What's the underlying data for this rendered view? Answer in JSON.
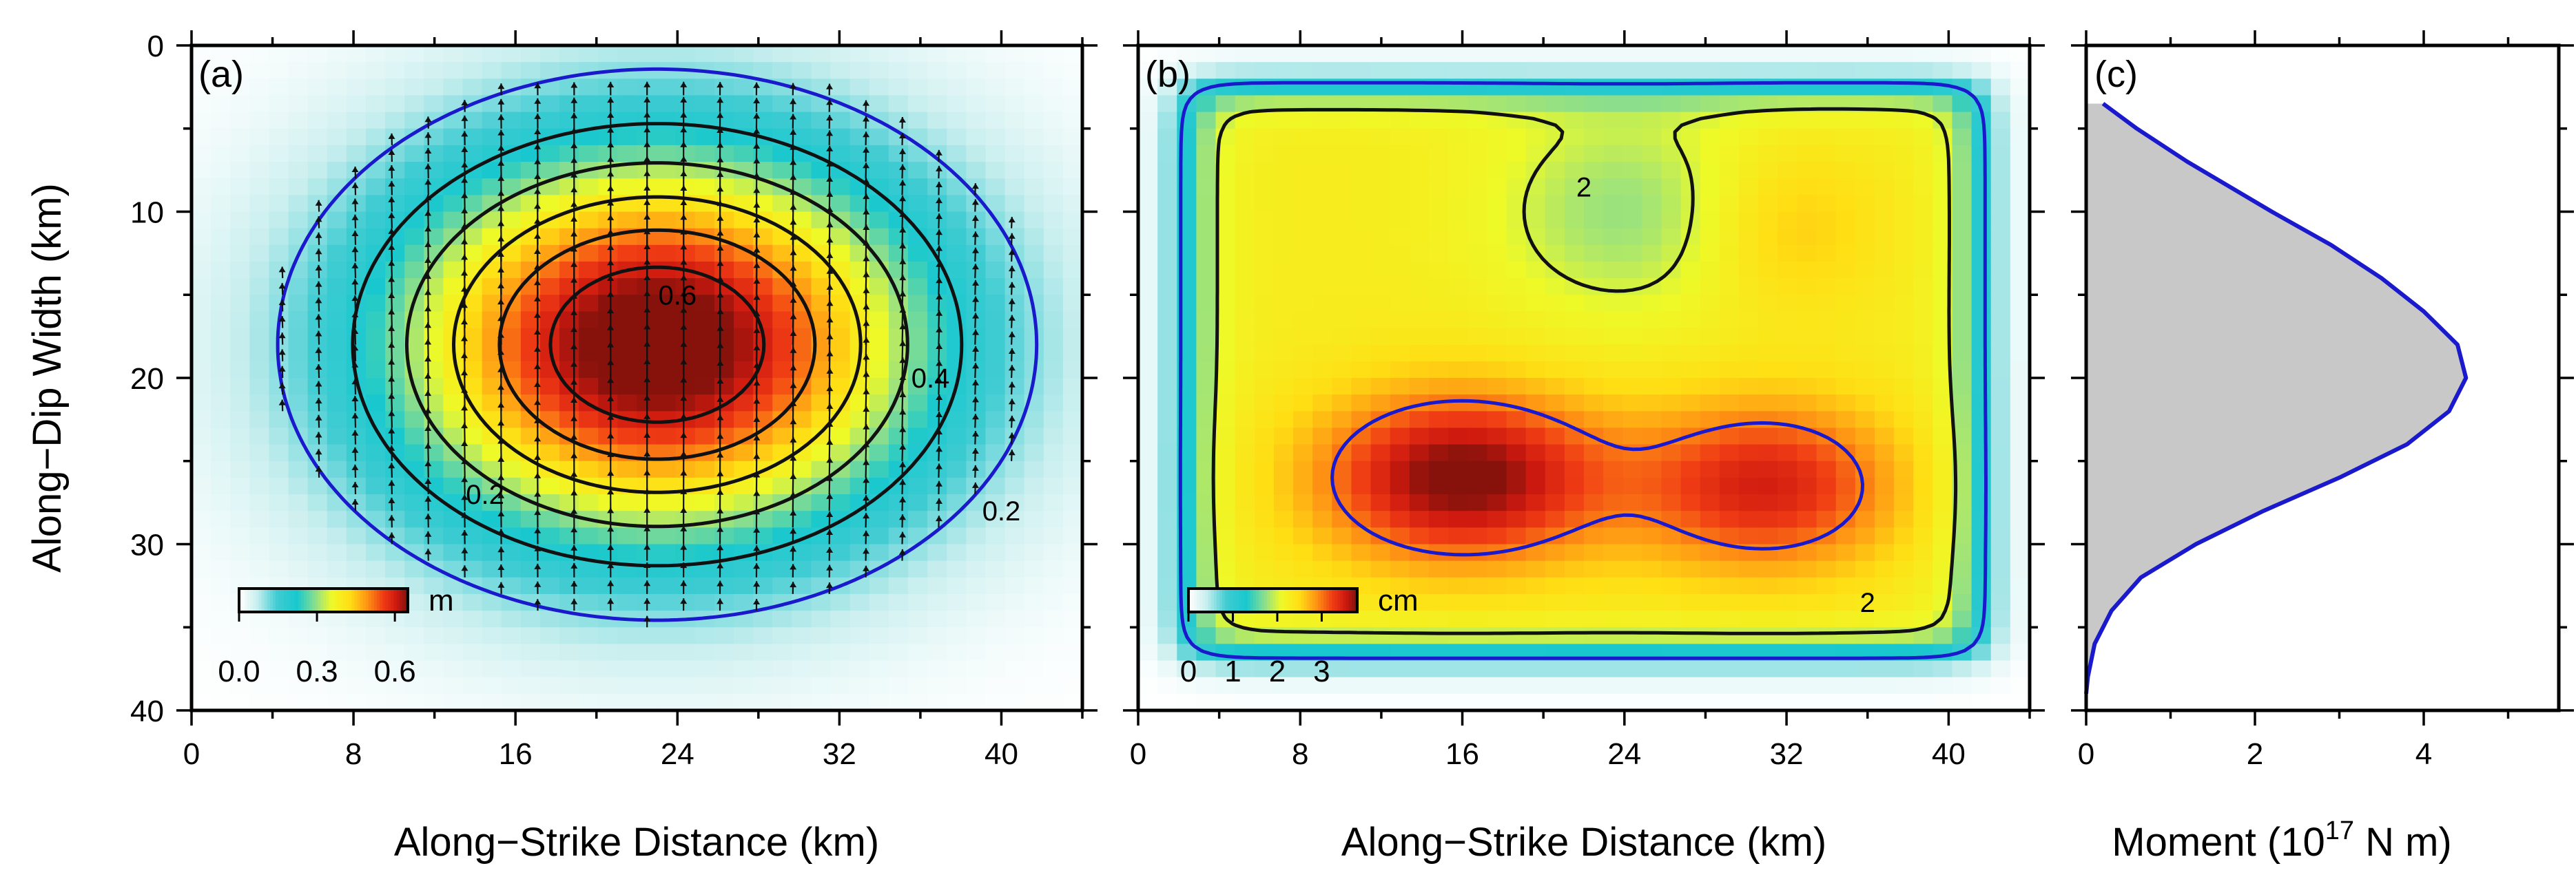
{
  "chart_data": [
    {
      "type": "heatmap",
      "panel_label": "(a)",
      "xlabel": "Along−Strike Distance (km)",
      "ylabel": "Along−Dip Width (km)",
      "xlim": [
        0,
        44
      ],
      "ylim": [
        0,
        40
      ],
      "xticks": [
        "0",
        "8",
        "16",
        "24",
        "32",
        "40"
      ],
      "yticks": [
        "0",
        "10",
        "20",
        "30",
        "40"
      ],
      "colorbar": {
        "unit": "m",
        "ticks": [
          "0.0",
          "0.3",
          "0.6"
        ],
        "range": [
          0,
          0.65
        ]
      },
      "peak": {
        "x": 23,
        "y": 18,
        "value": 0.7
      },
      "contour_levels": [
        0.1,
        0.2,
        0.3,
        0.4,
        0.5,
        0.6
      ],
      "contour_labels": [
        {
          "text": "0.6",
          "x": 24,
          "y": 15
        },
        {
          "text": "0.4",
          "x": 36.5,
          "y": 20
        },
        {
          "text": "0.2",
          "x": 14.5,
          "y": 27
        },
        {
          "text": "0.2",
          "x": 40,
          "y": 28
        }
      ],
      "slip_vectors": "rake arrows pointing up-dip"
    },
    {
      "type": "heatmap",
      "panel_label": "(b)",
      "xlabel": "Along−Strike Distance (km)",
      "xlim": [
        0,
        44
      ],
      "ylim": [
        0,
        40
      ],
      "xticks": [
        "0",
        "8",
        "16",
        "24",
        "32",
        "40"
      ],
      "colorbar": {
        "unit": "cm",
        "ticks": [
          "0",
          "1",
          "2",
          "3"
        ],
        "range": [
          0,
          3.8
        ]
      },
      "peaks": [
        {
          "x": 16,
          "y": 26,
          "value": 3.7
        },
        {
          "x": 31,
          "y": 26.5,
          "value": 3.3
        }
      ],
      "contour_levels": [
        1,
        2,
        3
      ],
      "contour_labels": [
        {
          "text": "2",
          "x": 22,
          "y": 8.5
        },
        {
          "text": "2",
          "x": 36,
          "y": 33.5
        }
      ]
    },
    {
      "type": "area",
      "panel_label": "(c)",
      "xlabel": "Moment (10",
      "xlabel_sup": "17",
      "xlabel_tail": " N m)",
      "xlim": [
        0,
        5.6
      ],
      "ylim": [
        0,
        40
      ],
      "xticks": [
        "0",
        "2",
        "4"
      ],
      "depth": [
        3.5,
        5,
        7,
        10,
        12,
        14,
        16,
        18,
        20,
        22,
        24,
        26,
        28,
        30,
        32,
        34,
        36,
        38,
        39
      ],
      "moment": [
        0.2,
        0.6,
        1.2,
        2.2,
        2.9,
        3.5,
        4.0,
        4.4,
        4.5,
        4.3,
        3.8,
        3.0,
        2.1,
        1.3,
        0.65,
        0.3,
        0.1,
        0.02,
        0.0
      ],
      "fill_color": "#c8c8c8",
      "line_color": "#1a1acc"
    }
  ]
}
